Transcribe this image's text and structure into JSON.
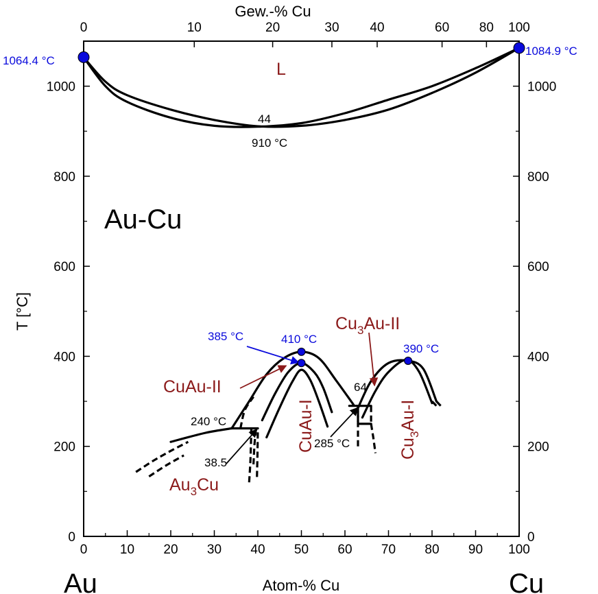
{
  "chart_data": {
    "type": "line",
    "title": "Au-Cu",
    "xlabel": "Atom-% Cu",
    "ylabel": "T [°C]",
    "top_axis_label": "Gew.-% Cu",
    "xlim": [
      0,
      100
    ],
    "ylim": [
      0,
      1100
    ],
    "x_ticks": [
      0,
      10,
      20,
      30,
      40,
      50,
      60,
      70,
      80,
      90,
      100
    ],
    "y_ticks": [
      0,
      200,
      400,
      600,
      800,
      1000
    ],
    "top_ticks": [
      {
        "label": "0",
        "at": 0
      },
      {
        "label": "10",
        "at": 25.4
      },
      {
        "label": "20",
        "at": 43.4
      },
      {
        "label": "30",
        "at": 57.0
      },
      {
        "label": "40",
        "at": 67.4
      },
      {
        "label": "60",
        "at": 82.3
      },
      {
        "label": "80",
        "at": 92.5
      },
      {
        "label": "100",
        "at": 100
      }
    ],
    "left_element": "Au",
    "right_element": "Cu",
    "series": [
      {
        "style": "solid",
        "points": [
          [
            0,
            1064
          ],
          [
            5,
            1000
          ],
          [
            10,
            965
          ],
          [
            20,
            930
          ],
          [
            30,
            912
          ],
          [
            40,
            910
          ],
          [
            50,
            918
          ],
          [
            60,
            940
          ],
          [
            70,
            970
          ],
          [
            80,
            1000
          ],
          [
            90,
            1040
          ],
          [
            100,
            1085
          ]
        ]
      },
      {
        "style": "solid",
        "points": [
          [
            0,
            1064
          ],
          [
            5,
            1010
          ],
          [
            10,
            980
          ],
          [
            20,
            948
          ],
          [
            30,
            925
          ],
          [
            40,
            911
          ],
          [
            50,
            912
          ],
          [
            60,
            925
          ],
          [
            70,
            948
          ],
          [
            80,
            985
          ],
          [
            90,
            1030
          ],
          [
            100,
            1085
          ]
        ]
      },
      {
        "style": "solid",
        "points": [
          [
            34,
            240
          ],
          [
            38,
            300
          ],
          [
            42,
            360
          ],
          [
            46,
            396
          ],
          [
            50,
            410
          ],
          [
            54,
            396
          ],
          [
            58,
            346
          ],
          [
            62,
            292
          ]
        ]
      },
      {
        "style": "solid",
        "points": [
          [
            41,
            258
          ],
          [
            44,
            318
          ],
          [
            47,
            365
          ],
          [
            50,
            385
          ],
          [
            53,
            364
          ],
          [
            55,
            330
          ],
          [
            57,
            276
          ]
        ]
      },
      {
        "style": "solid",
        "points": [
          [
            42,
            220
          ],
          [
            45,
            286
          ],
          [
            48,
            345
          ],
          [
            50,
            370
          ],
          [
            52,
            348
          ],
          [
            54,
            300
          ],
          [
            56,
            244
          ]
        ]
      },
      {
        "style": "solid",
        "points": [
          [
            63,
            285
          ],
          [
            66,
            345
          ],
          [
            70,
            385
          ],
          [
            74.5,
            390
          ],
          [
            78,
            372
          ],
          [
            81,
            300
          ]
        ]
      },
      {
        "style": "solid",
        "points": [
          [
            64,
            264
          ],
          [
            67,
            323
          ],
          [
            70,
            365
          ],
          [
            74,
            392
          ],
          [
            77,
            366
          ],
          [
            80,
            296
          ]
        ]
      },
      {
        "style": "solid",
        "points": [
          [
            34,
            240
          ],
          [
            40,
            240
          ]
        ]
      },
      {
        "style": "solid",
        "points": [
          [
            20,
            210
          ],
          [
            28,
            230
          ],
          [
            34,
            240
          ]
        ]
      },
      {
        "style": "solid",
        "points": [
          [
            61,
            290
          ],
          [
            66,
            290
          ]
        ]
      },
      {
        "style": "solid",
        "points": [
          [
            63,
            250
          ],
          [
            66,
            250
          ]
        ]
      },
      {
        "style": "dashed",
        "points": [
          [
            12,
            143
          ],
          [
            16,
            168
          ],
          [
            20,
            190
          ],
          [
            24,
            210
          ]
        ]
      },
      {
        "style": "dashed",
        "points": [
          [
            15,
            133
          ],
          [
            19,
            158
          ],
          [
            23,
            180
          ]
        ]
      },
      {
        "style": "dashed",
        "points": [
          [
            38,
            120
          ],
          [
            38.3,
            170
          ],
          [
            38.5,
            240
          ]
        ]
      },
      {
        "style": "dashed",
        "points": [
          [
            39.8,
            132
          ],
          [
            39.9,
            180
          ],
          [
            40,
            240
          ]
        ]
      },
      {
        "style": "dashed",
        "points": [
          [
            39,
            160
          ],
          [
            39.2,
            200
          ],
          [
            39.5,
            232
          ]
        ]
      },
      {
        "style": "dashed",
        "points": [
          [
            36,
            240
          ],
          [
            37,
            280
          ],
          [
            39,
            310
          ]
        ]
      },
      {
        "style": "dashed",
        "points": [
          [
            63,
            200
          ],
          [
            63,
            290
          ]
        ]
      },
      {
        "style": "dashed",
        "points": [
          [
            66,
            250
          ],
          [
            66.5,
            220
          ],
          [
            67,
            185
          ]
        ]
      },
      {
        "style": "dashed",
        "points": [
          [
            63,
            290
          ],
          [
            63,
            250
          ]
        ]
      },
      {
        "style": "dashed",
        "points": [
          [
            66,
            290
          ],
          [
            66,
            250
          ]
        ]
      },
      {
        "style": "dashed",
        "points": [
          [
            80,
            300
          ],
          [
            81,
            290
          ]
        ]
      },
      {
        "style": "dashed",
        "points": [
          [
            81,
            300
          ],
          [
            82,
            290
          ]
        ]
      }
    ],
    "special_points": [
      {
        "x": 0,
        "y": 1064.4,
        "label": "1064.4 °C"
      },
      {
        "x": 100,
        "y": 1084.9,
        "label": "1084.9 °C"
      },
      {
        "x": 50,
        "y": 410,
        "label": "410 °C"
      },
      {
        "x": 50,
        "y": 385,
        "label": "385 °C"
      },
      {
        "x": 74.5,
        "y": 390,
        "label": "390 °C"
      }
    ],
    "annotations": {
      "liquid": "L",
      "min_comp": "44",
      "min_temp": "910 °C",
      "t240": "240 °C",
      "c38": "38.5",
      "t285": "285 °C",
      "c64": "64"
    },
    "phases": {
      "au3cu_base": "Au",
      "au3cu_sub": "3",
      "au3cu_tail": "Cu",
      "cuau_ii": "CuAu-II",
      "cuau_i": "CuAu-I",
      "cu3au_i_base": "Cu",
      "cu3au_i_sub": "3",
      "cu3au_i_tail": "Au-I",
      "cu3au_ii_base": "Cu",
      "cu3au_ii_sub": "3",
      "cu3au_ii_tail": "Au-II"
    },
    "colors": {
      "curve": "#000000",
      "point": "#0a0adc",
      "phase": "#8b1a1a",
      "highlight": "#0a0adc"
    }
  }
}
